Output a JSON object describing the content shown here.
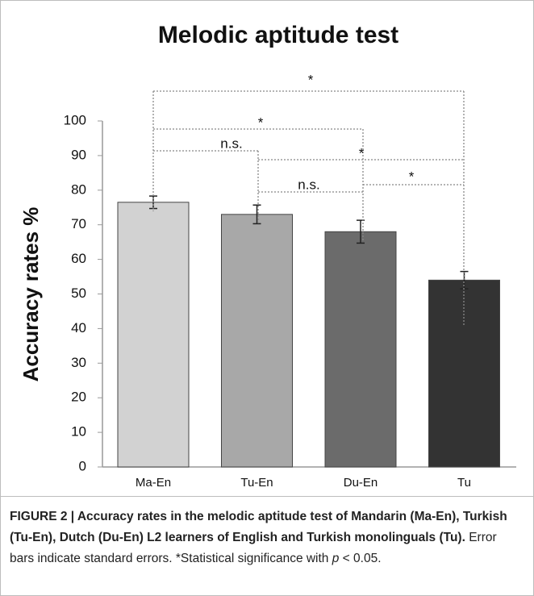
{
  "chart_data": {
    "type": "bar",
    "title": "Melodic aptitude test",
    "ylabel": "Accuracy rates %",
    "categories": [
      "Ma-En",
      "Tu-En",
      "Du-En",
      "Tu"
    ],
    "values": [
      76.5,
      73,
      68,
      54
    ],
    "errors": [
      1.8,
      2.7,
      3.3,
      2.5
    ],
    "colors": [
      "#d2d2d2",
      "#a8a8a8",
      "#6b6b6b",
      "#333333"
    ],
    "ylim": [
      0,
      100
    ],
    "yticks": [
      0,
      10,
      20,
      30,
      40,
      50,
      60,
      70,
      80,
      90,
      100
    ],
    "annotations": [
      "*",
      "*",
      "n.s.",
      "*",
      "n.s.",
      "*"
    ]
  },
  "caption": {
    "bold": "FIGURE 2 | Accuracy rates in the melodic aptitude test of Mandarin (Ma-En), Turkish (Tu-En), Dutch (Du-En) L2 learners of English and Turkish monolinguals (Tu).",
    "text": " Error bars indicate standard errors. *Statistical significance with ",
    "italic": "p",
    "end": " < 0.05."
  }
}
